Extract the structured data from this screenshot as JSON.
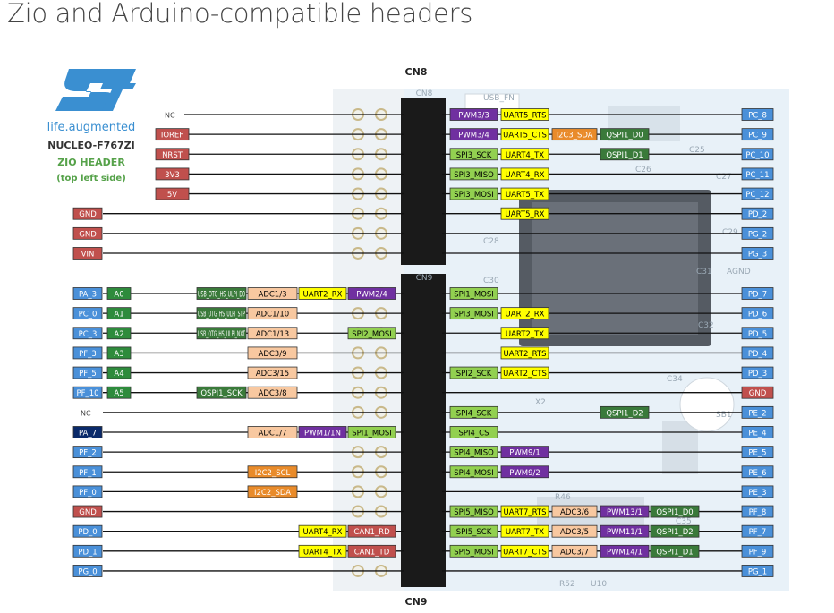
{
  "page_title": "Zio and Arduino-compatible headers",
  "logo": {
    "tagline": "life.augmented",
    "board_name": "NUCLEO-F767ZI",
    "header_name": "ZIO HEADER",
    "side_note": "(top left side)"
  },
  "connectors": {
    "top": "CN8",
    "bottom": "CN9",
    "board_cn8": "CN8",
    "board_cn9": "CN9"
  },
  "board_silk": [
    "USB_FN",
    "C28",
    "C29",
    "C30",
    "C31",
    "AGND",
    "C32",
    "C34",
    "SB1",
    "R46",
    "R52",
    "U10",
    "X2",
    "C26",
    "C25",
    "C27",
    "C35"
  ],
  "colors": {
    "red": "#c0504d",
    "blue": "#4a90d9",
    "green": "#2e8b3c",
    "lime": "#92d050",
    "yellow": "#ffff00",
    "orange": "#e98b2a",
    "salmon": "#f8c8a0",
    "purple": "#7030a0",
    "darkgreen": "#3a7a3a",
    "navy": "#0a2a6a",
    "grey": "#8a8a8a"
  },
  "rows": [
    {
      "left": [
        {
          "t": "NC",
          "c": "nc"
        }
      ],
      "right": [
        {
          "t": "PWM3/3",
          "c": "purple"
        },
        {
          "t": "UART5_RTS",
          "c": "yellow"
        }
      ],
      "far": {
        "t": "PC_8",
        "c": "blue"
      }
    },
    {
      "left": [
        {
          "t": "IOREF",
          "c": "red"
        }
      ],
      "right": [
        {
          "t": "PWM3/4",
          "c": "purple"
        },
        {
          "t": "UART5_CTS",
          "c": "yellow"
        },
        {
          "t": "I2C3_SDA",
          "c": "orange"
        },
        {
          "t": "QSPI1_D0",
          "c": "darkgreen"
        }
      ],
      "far": {
        "t": "PC_9",
        "c": "blue"
      }
    },
    {
      "left": [
        {
          "t": "NRST",
          "c": "red"
        }
      ],
      "right": [
        {
          "t": "SPI3_SCK",
          "c": "lime"
        },
        {
          "t": "UART4_TX",
          "c": "yellow"
        },
        {
          "t": "",
          "c": "gap"
        },
        {
          "t": "QSPI1_D1",
          "c": "darkgreen"
        }
      ],
      "far": {
        "t": "PC_10",
        "c": "blue"
      }
    },
    {
      "left": [
        {
          "t": "3V3",
          "c": "red"
        }
      ],
      "right": [
        {
          "t": "SPI3_MISO",
          "c": "lime"
        },
        {
          "t": "UART4_RX",
          "c": "yellow"
        }
      ],
      "far": {
        "t": "PC_11",
        "c": "blue"
      }
    },
    {
      "left": [
        {
          "t": "5V",
          "c": "red"
        }
      ],
      "right": [
        {
          "t": "SPI3_MOSI",
          "c": "lime"
        },
        {
          "t": "UART5_TX",
          "c": "yellow"
        }
      ],
      "far": {
        "t": "PC_12",
        "c": "blue"
      }
    },
    {
      "left": [
        {
          "t": "GND",
          "c": "red"
        }
      ],
      "right": [
        {
          "t": "",
          "c": "gap"
        },
        {
          "t": "UART5_RX",
          "c": "yellow"
        }
      ],
      "far": {
        "t": "PD_2",
        "c": "blue"
      }
    },
    {
      "left": [
        {
          "t": "GND",
          "c": "red"
        }
      ],
      "right": [],
      "far": {
        "t": "PG_2",
        "c": "blue"
      }
    },
    {
      "left": [
        {
          "t": "VIN",
          "c": "red"
        }
      ],
      "right": [],
      "far": {
        "t": "PG_3",
        "c": "blue"
      }
    },
    {
      "left": [
        {
          "t": "PA_3",
          "c": "blue"
        },
        {
          "t": "A0",
          "c": "green"
        },
        {
          "t": "USB_OTG_HS_ULPI_D0",
          "c": "darkgreen"
        },
        {
          "t": "ADC1/3",
          "c": "salmon"
        },
        {
          "t": "UART2_RX",
          "c": "yellow"
        },
        {
          "t": "PWM2/4",
          "c": "purple"
        }
      ],
      "right": [
        {
          "t": "SPI1_MOSI",
          "c": "lime"
        }
      ],
      "far": {
        "t": "PD_7",
        "c": "blue"
      }
    },
    {
      "left": [
        {
          "t": "PC_0",
          "c": "blue"
        },
        {
          "t": "A1",
          "c": "green"
        },
        {
          "t": "USB_OTG_HS_ULPI_STP",
          "c": "darkgreen"
        },
        {
          "t": "ADC1/10",
          "c": "salmon"
        }
      ],
      "right": [
        {
          "t": "SPI3_MOSI",
          "c": "lime"
        },
        {
          "t": "UART2_RX",
          "c": "yellow"
        }
      ],
      "far": {
        "t": "PD_6",
        "c": "blue"
      }
    },
    {
      "left": [
        {
          "t": "PC_3",
          "c": "blue"
        },
        {
          "t": "A2",
          "c": "green"
        },
        {
          "t": "USB_OTG_HS_ULPI_NXT",
          "c": "darkgreen"
        },
        {
          "t": "ADC1/13",
          "c": "salmon"
        },
        {
          "t": "",
          "c": "gap"
        },
        {
          "t": "SPI2_MOSI",
          "c": "lime"
        }
      ],
      "right": [
        {
          "t": "",
          "c": "gap"
        },
        {
          "t": "UART2_TX",
          "c": "yellow"
        }
      ],
      "far": {
        "t": "PD_5",
        "c": "blue"
      }
    },
    {
      "left": [
        {
          "t": "PF_3",
          "c": "blue"
        },
        {
          "t": "A3",
          "c": "green"
        },
        {
          "t": "",
          "c": "gap"
        },
        {
          "t": "ADC3/9",
          "c": "salmon"
        }
      ],
      "right": [
        {
          "t": "",
          "c": "gap"
        },
        {
          "t": "UART2_RTS",
          "c": "yellow"
        }
      ],
      "far": {
        "t": "PD_4",
        "c": "blue"
      }
    },
    {
      "left": [
        {
          "t": "PF_5",
          "c": "blue"
        },
        {
          "t": "A4",
          "c": "green"
        },
        {
          "t": "",
          "c": "gap"
        },
        {
          "t": "ADC3/15",
          "c": "salmon"
        }
      ],
      "right": [
        {
          "t": "SPI2_SCK",
          "c": "lime"
        },
        {
          "t": "UART2_CTS",
          "c": "yellow"
        }
      ],
      "far": {
        "t": "PD_3",
        "c": "blue"
      }
    },
    {
      "left": [
        {
          "t": "PF_10",
          "c": "blue"
        },
        {
          "t": "A5",
          "c": "green"
        },
        {
          "t": "QSPI1_SCK",
          "c": "darkgreen"
        },
        {
          "t": "ADC3/8",
          "c": "salmon"
        }
      ],
      "right": [],
      "far": {
        "t": "GND",
        "c": "red"
      }
    },
    {
      "left": [
        {
          "t": "NC",
          "c": "nc"
        }
      ],
      "right": [
        {
          "t": "SPI4_SCK",
          "c": "lime"
        },
        {
          "t": "",
          "c": "gap"
        },
        {
          "t": "",
          "c": "gap"
        },
        {
          "t": "QSPI1_D2",
          "c": "darkgreen"
        }
      ],
      "far": {
        "t": "PE_2",
        "c": "blue"
      }
    },
    {
      "left": [
        {
          "t": "PA_7",
          "c": "navy"
        },
        {
          "t": "",
          "c": "gap"
        },
        {
          "t": "",
          "c": "gap"
        },
        {
          "t": "ADC1/7",
          "c": "salmon"
        },
        {
          "t": "PWM1/1N",
          "c": "purple"
        },
        {
          "t": "SPI1_MOSI",
          "c": "lime"
        }
      ],
      "right": [
        {
          "t": "SPI4_CS",
          "c": "lime"
        }
      ],
      "far": {
        "t": "PE_4",
        "c": "blue"
      }
    },
    {
      "left": [
        {
          "t": "PF_2",
          "c": "blue"
        }
      ],
      "right": [
        {
          "t": "SPI4_MISO",
          "c": "lime"
        },
        {
          "t": "PWM9/1",
          "c": "purple"
        }
      ],
      "far": {
        "t": "PE_5",
        "c": "blue"
      }
    },
    {
      "left": [
        {
          "t": "PF_1",
          "c": "blue"
        },
        {
          "t": "",
          "c": "gap"
        },
        {
          "t": "",
          "c": "gap"
        },
        {
          "t": "I2C2_SCL",
          "c": "orange"
        }
      ],
      "right": [
        {
          "t": "SPI4_MOSI",
          "c": "lime"
        },
        {
          "t": "PWM9/2",
          "c": "purple"
        }
      ],
      "far": {
        "t": "PE_6",
        "c": "blue"
      }
    },
    {
      "left": [
        {
          "t": "PF_0",
          "c": "blue"
        },
        {
          "t": "",
          "c": "gap"
        },
        {
          "t": "",
          "c": "gap"
        },
        {
          "t": "I2C2_SDA",
          "c": "orange"
        }
      ],
      "right": [],
      "far": {
        "t": "PE_3",
        "c": "blue"
      }
    },
    {
      "left": [
        {
          "t": "GND",
          "c": "red"
        }
      ],
      "right": [
        {
          "t": "SPI5_MISO",
          "c": "lime"
        },
        {
          "t": "UART7_RTS",
          "c": "yellow"
        },
        {
          "t": "ADC3/6",
          "c": "salmon"
        },
        {
          "t": "PWM13/1",
          "c": "purple"
        },
        {
          "t": "QSPI1_D0",
          "c": "darkgreen"
        }
      ],
      "far": {
        "t": "PF_8",
        "c": "blue"
      }
    },
    {
      "left": [
        {
          "t": "PD_0",
          "c": "blue"
        },
        {
          "t": "",
          "c": "gap"
        },
        {
          "t": "",
          "c": "gap"
        },
        {
          "t": "",
          "c": "gap"
        },
        {
          "t": "UART4_RX",
          "c": "yellow"
        },
        {
          "t": "CAN1_RD",
          "c": "red"
        }
      ],
      "right": [
        {
          "t": "SPI5_SCK",
          "c": "lime"
        },
        {
          "t": "UART7_TX",
          "c": "yellow"
        },
        {
          "t": "ADC3/5",
          "c": "salmon"
        },
        {
          "t": "PWM11/1",
          "c": "purple"
        },
        {
          "t": "QSPI1_D2",
          "c": "darkgreen"
        }
      ],
      "far": {
        "t": "PF_7",
        "c": "blue"
      }
    },
    {
      "left": [
        {
          "t": "PD_1",
          "c": "blue"
        },
        {
          "t": "",
          "c": "gap"
        },
        {
          "t": "",
          "c": "gap"
        },
        {
          "t": "",
          "c": "gap"
        },
        {
          "t": "UART4_TX",
          "c": "yellow"
        },
        {
          "t": "CAN1_TD",
          "c": "red"
        }
      ],
      "right": [
        {
          "t": "SPI5_MOSI",
          "c": "lime"
        },
        {
          "t": "UART7_CTS",
          "c": "yellow"
        },
        {
          "t": "ADC3/7",
          "c": "salmon"
        },
        {
          "t": "PWM14/1",
          "c": "purple"
        },
        {
          "t": "QSPI1_D1",
          "c": "darkgreen"
        }
      ],
      "far": {
        "t": "PF_9",
        "c": "blue"
      }
    },
    {
      "left": [
        {
          "t": "PG_0",
          "c": "blue"
        }
      ],
      "right": [],
      "far": {
        "t": "PG_1",
        "c": "blue"
      }
    }
  ]
}
